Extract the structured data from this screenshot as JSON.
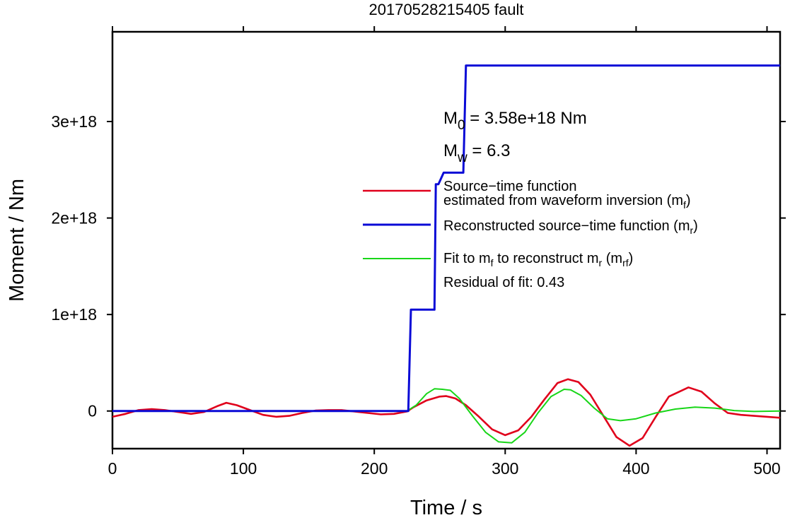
{
  "chart_data": {
    "type": "line",
    "title": "20170528215405 fault",
    "xlabel": "Time / s",
    "ylabel": "Moment / Nm",
    "xlim": [
      0,
      510
    ],
    "ylim": [
      -3.9e+17,
      3.93e+18
    ],
    "x_ticks": [
      0,
      100,
      200,
      300,
      400,
      500
    ],
    "x_tick_labels": [
      "0",
      "100",
      "200",
      "300",
      "400",
      "500"
    ],
    "y_ticks": [
      0,
      1e+18,
      2e+18,
      3e+18
    ],
    "y_tick_labels": [
      "0",
      "1e+18",
      "2e+18",
      "3e+18"
    ],
    "grid": false,
    "legend_position": "right",
    "annotations": {
      "m0": {
        "main": "M",
        "sub": "0",
        "rest": " = 3.58e+18 Nm"
      },
      "mw": {
        "main": "M",
        "sub": "w",
        "rest": " = 6.3"
      },
      "residual": "Residual of fit: 0.43"
    },
    "legend": {
      "red": {
        "line1": "Source−time function",
        "line2_prefix": "estimated from waveform inversion (m",
        "line2_sub": "f",
        "line2_suffix": ")"
      },
      "blue": {
        "prefix": "Reconstructed source−time function (m",
        "sub": "r",
        "suffix": ")"
      },
      "green": {
        "p1": "Fit to m",
        "s1": "f",
        "p2": " to reconstruct m",
        "s2": "r",
        "p3": " (m",
        "s3": "rf",
        "p4": ")"
      }
    },
    "series": [
      {
        "key": "red",
        "color": "#e0001b",
        "x": [
          0,
          10,
          20,
          30,
          40,
          50,
          60,
          70,
          80,
          87,
          95,
          105,
          115,
          125,
          135,
          145,
          155,
          165,
          175,
          185,
          195,
          205,
          215,
          225,
          230,
          240,
          250,
          255,
          262,
          270,
          280,
          290,
          300,
          310,
          320,
          330,
          340,
          348,
          356,
          365,
          375,
          385,
          395,
          405,
          415,
          425,
          440,
          450,
          460,
          470,
          480,
          490,
          500,
          510
        ],
        "y": [
          -6e+16,
          -3e+16,
          1e+16,
          2e+16,
          1e+16,
          -1e+16,
          -3e+16,
          -1e+16,
          5e+16,
          8.5e+16,
          6e+16,
          1e+16,
          -4e+16,
          -6e+16,
          -5e+16,
          -2e+16,
          5000000000000000.0,
          1e+16,
          1e+16,
          -5000000000000000.0,
          -2e+16,
          -3.5e+16,
          -3e+16,
          -5000000000000000.0,
          4e+16,
          1.1e+17,
          1.5e+17,
          1.55e+17,
          1.3e+17,
          6e+16,
          -6e+16,
          -1.9e+17,
          -2.5e+17,
          -2e+17,
          -6e+16,
          1.2e+17,
          2.9e+17,
          3.3e+17,
          3e+17,
          1.7e+17,
          -5e+16,
          -2.7e+17,
          -3.6e+17,
          -2.8e+17,
          -6e+16,
          1.5e+17,
          2.45e+17,
          2e+17,
          8e+16,
          -2e+16,
          -4e+16,
          -5e+16,
          -6e+16,
          -7e+16
        ]
      },
      {
        "key": "blue",
        "color": "#0a0ad6",
        "x": [
          0,
          226,
          228,
          246,
          247,
          249,
          253,
          268,
          270,
          510
        ],
        "y": [
          0,
          0,
          1.05e+18,
          1.05e+18,
          2.35e+18,
          2.35e+18,
          2.47e+18,
          2.47e+18,
          3.58e+18,
          3.58e+18
        ],
        "step": true
      },
      {
        "key": "green",
        "color": "#18d618",
        "x": [
          0,
          100,
          200,
          225,
          232,
          240,
          246,
          252,
          258,
          265,
          275,
          285,
          295,
          305,
          315,
          325,
          335,
          345,
          350,
          358,
          368,
          378,
          388,
          400,
          415,
          430,
          445,
          460,
          475,
          490,
          510
        ],
        "y": [
          0,
          0,
          0,
          0,
          6e+16,
          1.8e+17,
          2.3e+17,
          2.25e+17,
          2.15e+17,
          1.3e+17,
          -5e+16,
          -2.2e+17,
          -3.2e+17,
          -3.3e+17,
          -2.2e+17,
          -2e+16,
          1.5e+17,
          2.25e+17,
          2.2e+17,
          1.6e+17,
          3e+16,
          -8e+16,
          -1e+17,
          -8e+16,
          -2e+16,
          2e+16,
          4e+16,
          3e+16,
          5000000000000000.0,
          -5000000000000000.0,
          0
        ]
      }
    ]
  }
}
